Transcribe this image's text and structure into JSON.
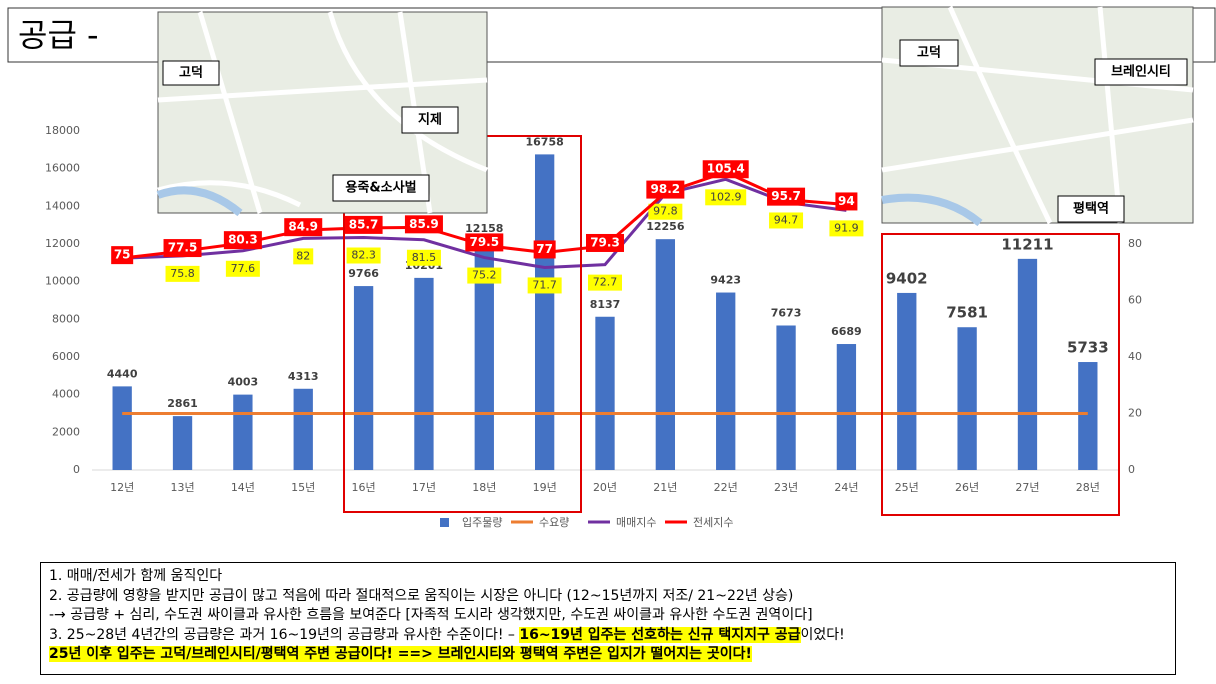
{
  "header": {
    "title": "공급 -"
  },
  "maps": [
    {
      "labels": [
        "고덕",
        "지제",
        "용죽&소사벌"
      ]
    },
    {
      "labels": [
        "고덕",
        "브레인시티",
        "평택역"
      ]
    }
  ],
  "chart_data": {
    "type": "bar",
    "categories": [
      "12년",
      "13년",
      "14년",
      "15년",
      "16년",
      "17년",
      "18년",
      "19년",
      "20년",
      "21년",
      "22년",
      "23년",
      "24년",
      "25년",
      "26년",
      "27년",
      "28년"
    ],
    "series": [
      {
        "name": "입주물량",
        "type": "bar",
        "color": "#4472c4",
        "values": [
          4440,
          2861,
          4003,
          4313,
          9766,
          10201,
          12158,
          16758,
          8137,
          12256,
          9423,
          7673,
          6689,
          9402,
          7581,
          11211,
          5733
        ]
      },
      {
        "name": "수요량",
        "type": "line",
        "color": "#ed7d31",
        "values": [
          3000,
          3000,
          3000,
          3000,
          3000,
          3000,
          3000,
          3000,
          3000,
          3000,
          3000,
          3000,
          3000,
          3000,
          3000,
          3000,
          3000
        ]
      },
      {
        "name": "매매지수",
        "type": "line",
        "axis": "y2",
        "color": "#7030a0",
        "values": [
          75,
          75.8,
          77.6,
          82,
          82.3,
          81.5,
          75.2,
          71.7,
          72.7,
          97.8,
          102.9,
          94.7,
          91.9,
          null,
          null,
          null,
          null
        ],
        "value_labels": [
          null,
          "75.8",
          "77.6",
          "82",
          "82.3",
          "81.5",
          "75.2",
          "71.7",
          "72.7",
          "97.8",
          "102.9",
          "94.7",
          "91.9",
          null,
          null,
          null,
          null
        ]
      },
      {
        "name": "전세지수",
        "type": "line",
        "axis": "y2",
        "color": "#ff0000",
        "values": [
          75,
          77.5,
          80.3,
          84.9,
          85.7,
          85.9,
          79.5,
          77,
          79.3,
          98.2,
          105.4,
          95.7,
          94,
          null,
          null,
          null,
          null
        ]
      }
    ],
    "ylim": [
      0,
      18000
    ],
    "yticks": [
      0,
      2000,
      4000,
      6000,
      8000,
      10000,
      12000,
      14000,
      16000,
      18000
    ],
    "y2lim": [
      0,
      120
    ],
    "y2ticks": [
      0,
      20,
      40,
      60,
      80
    ],
    "legend": "bottom"
  },
  "notes": {
    "lines": [
      "1.    매매/전세가 함께 움직인다",
      "2.    공급량에 영향을 받지만 공급이 많고 적음에 따라 절대적으로 움직이는 시장은 아니다 (12~15년까지 저조/ 21~22년 상승)",
      "-→ 공급량 + 심리, 수도권 싸이클과 유사한 흐름을 보여준다 [자족적 도시라 생각했지만, 수도권 싸이클과 유사한 수도권 권역이다]"
    ],
    "line4": [
      "3. 25~28년 4년간의 공급량은 과거 16~19년의 공급량과 유사한 수준이다! – ",
      "16~19년 입주는 선호하는 신규 택지지구 공급",
      "이었다!"
    ],
    "line5": "25년 이후 입주는 고덕/브레인시티/평택역 주변 공급이다! ==> 브레인시티와 평택역 주변은 입지가 떨어지는 곳이다!"
  }
}
